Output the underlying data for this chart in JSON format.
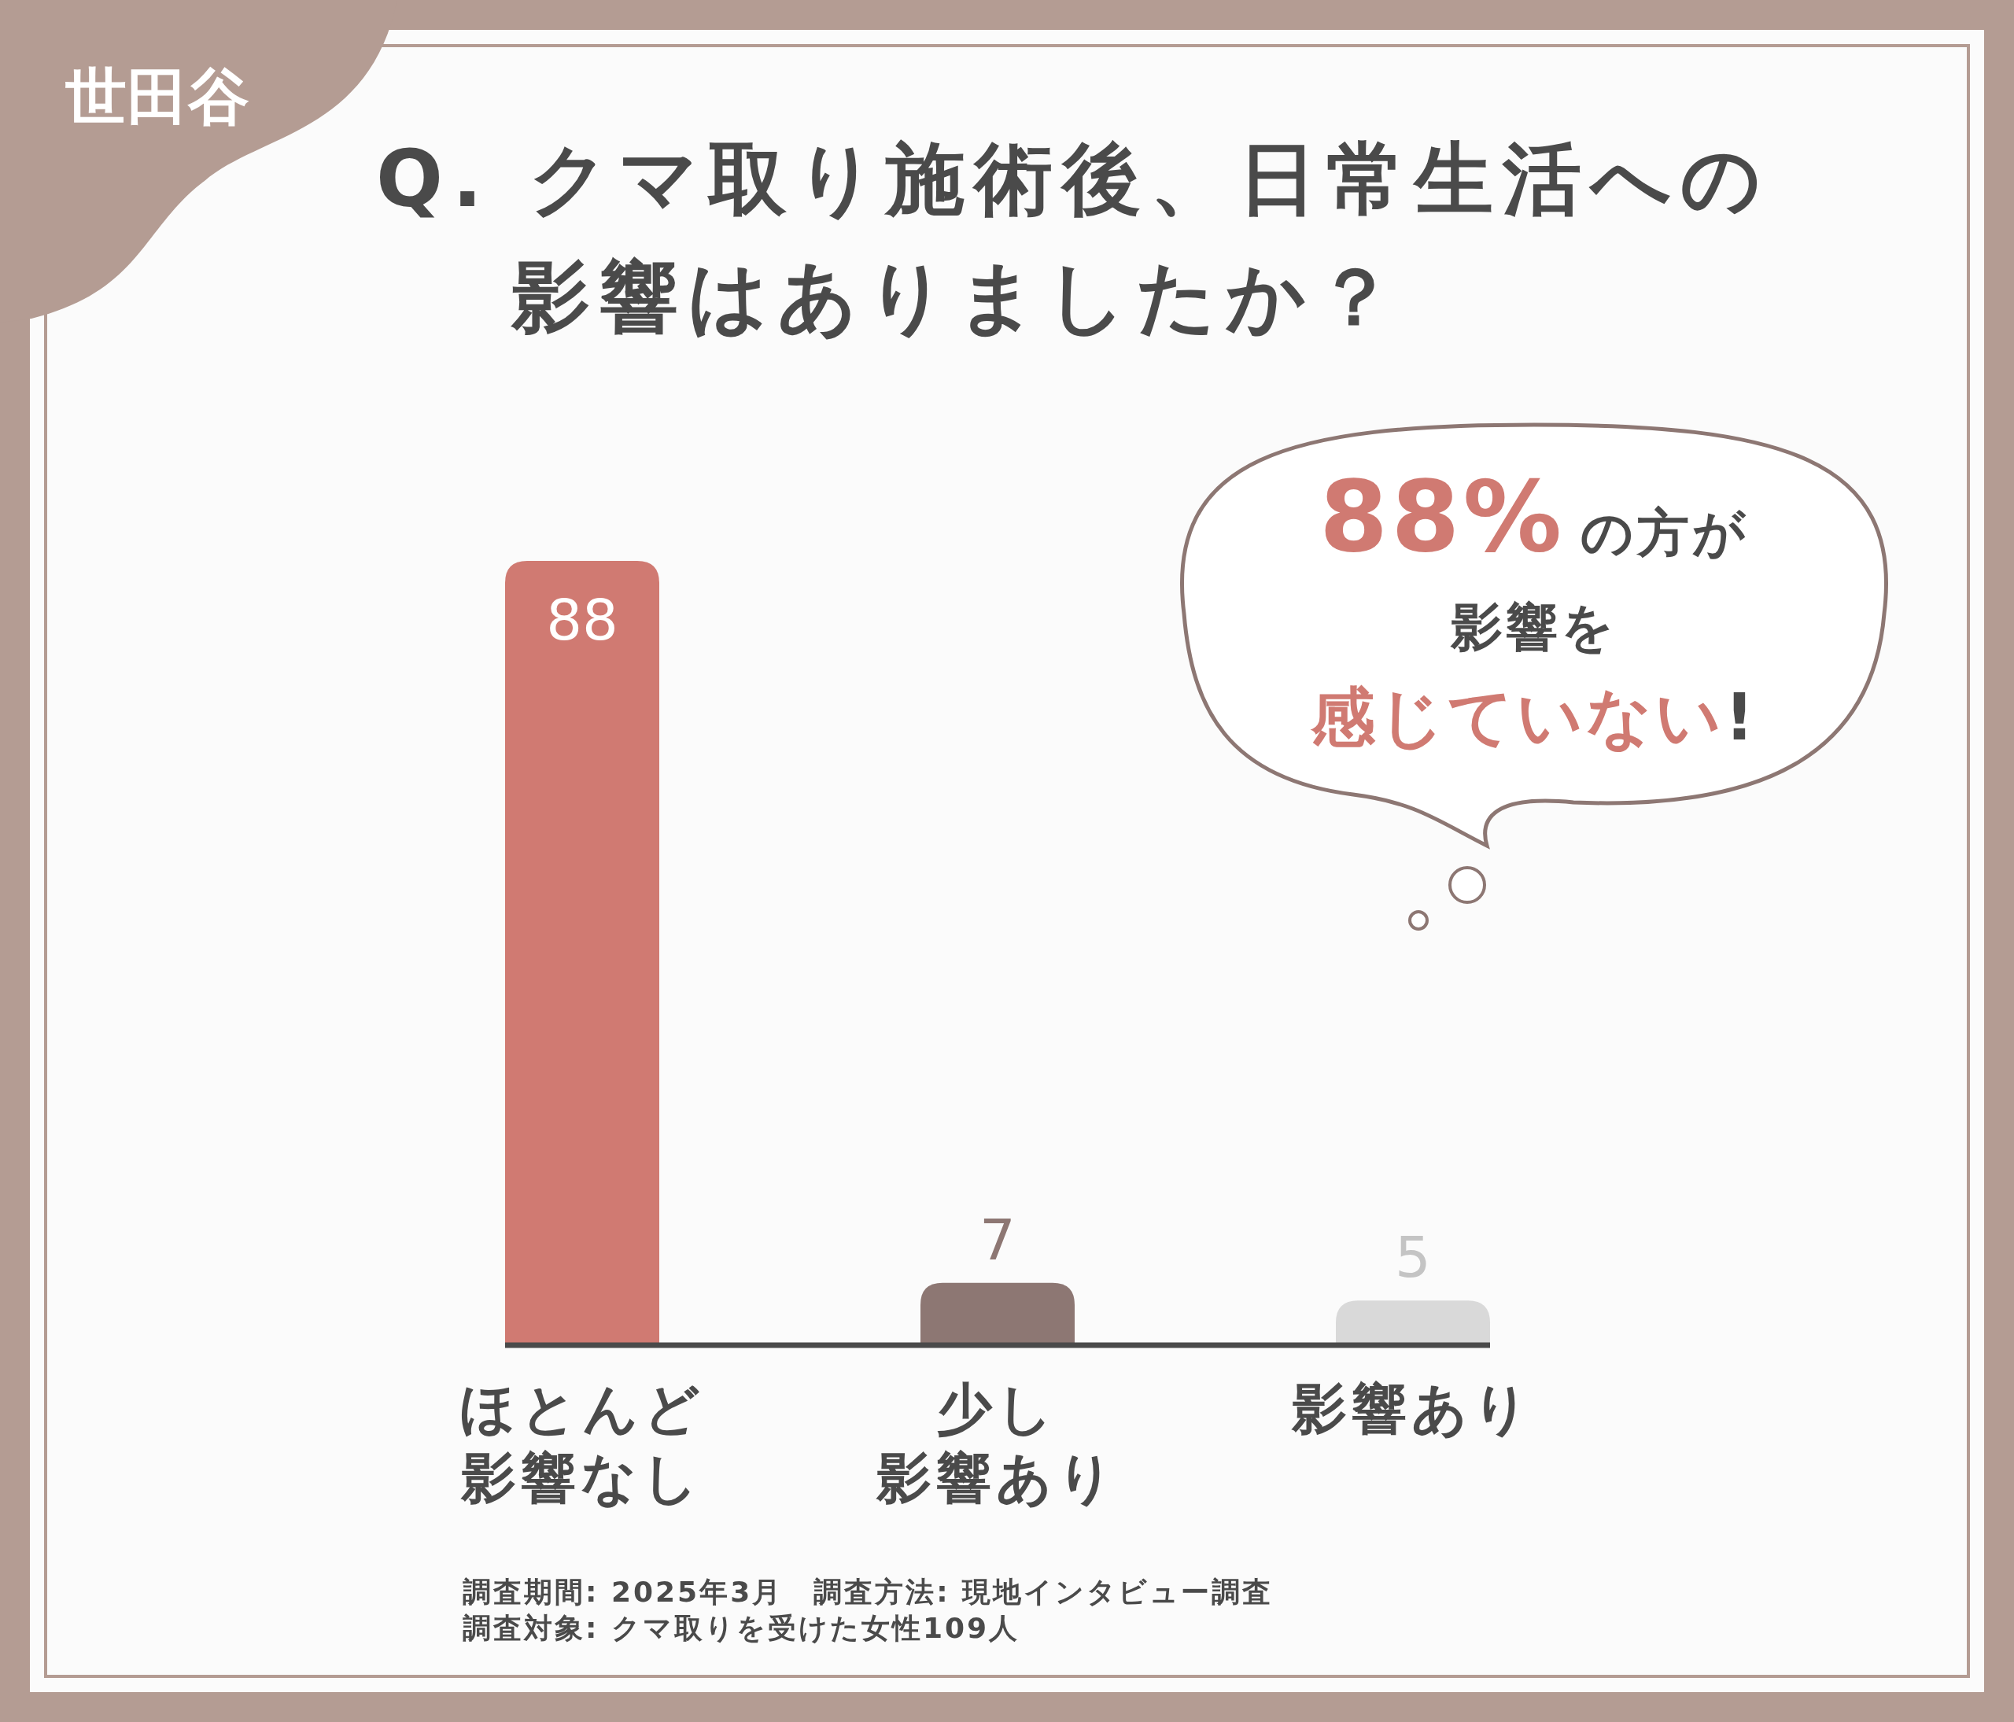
{
  "chart_data": {
    "type": "bar",
    "title": "Q. クマ取り施術後、日常生活への影響はありましたか？",
    "categories": [
      "ほとんど影響なし",
      "少し影響あり",
      "影響あり"
    ],
    "values": [
      88,
      7,
      5
    ],
    "colors": [
      "#d07a72",
      "#8d7773",
      "#d9d9d9"
    ],
    "data_labels": true,
    "annotations": [
      "世田谷",
      "88%の方が",
      "影響を",
      "感じていない!",
      "調査期間: 2025年3月　調査方法: 現地インタビュー調査",
      "調査対象: クマ取りを受けた女性109人"
    ]
  }
}
